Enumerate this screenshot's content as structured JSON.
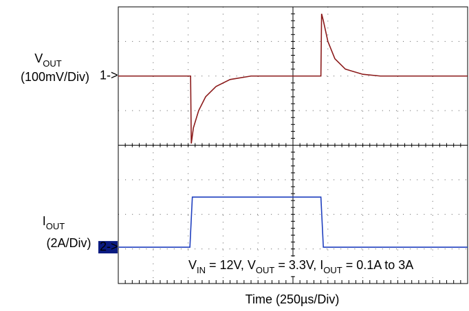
{
  "chart_data": {
    "type": "line",
    "xlabel": "Time (250µs/Div)",
    "annotation": [
      "V",
      "IN",
      " = 12V, V",
      "OUT",
      " = 3.3V, I",
      "OUT",
      " = 0.1A to 3A"
    ],
    "xlim": [
      0,
      10
    ],
    "ylim": [
      0,
      8
    ],
    "xticks": [
      0,
      1,
      2,
      3,
      4,
      5,
      6,
      7,
      8,
      9,
      10
    ],
    "yticks": [
      0,
      1,
      2,
      3,
      4,
      5,
      6,
      7,
      8
    ],
    "grid": true,
    "series": [
      {
        "label": [
          "V",
          "OUT"
        ],
        "scale": "(100mV/Div)",
        "marker": "1->",
        "color": "#8b1a1a",
        "x": [
          0,
          2.07,
          2.09,
          2.15,
          2.3,
          2.5,
          2.8,
          3.2,
          3.8,
          5.8,
          5.82,
          5.87,
          6.0,
          6.2,
          6.5,
          7.0,
          7.5,
          10
        ],
        "values": [
          6,
          6,
          4.05,
          4.5,
          5.0,
          5.4,
          5.7,
          5.9,
          6,
          6,
          7.8,
          7.6,
          7.0,
          6.5,
          6.2,
          6.05,
          6,
          6
        ]
      },
      {
        "label": [
          "I",
          "OUT"
        ],
        "scale": "(2A/Div)",
        "marker": "2->",
        "color": "#1f3fbf",
        "x": [
          0,
          2.05,
          2.12,
          5.8,
          5.87,
          10
        ],
        "values": [
          1.05,
          1.05,
          2.5,
          2.5,
          1.05,
          1.05
        ]
      }
    ]
  }
}
